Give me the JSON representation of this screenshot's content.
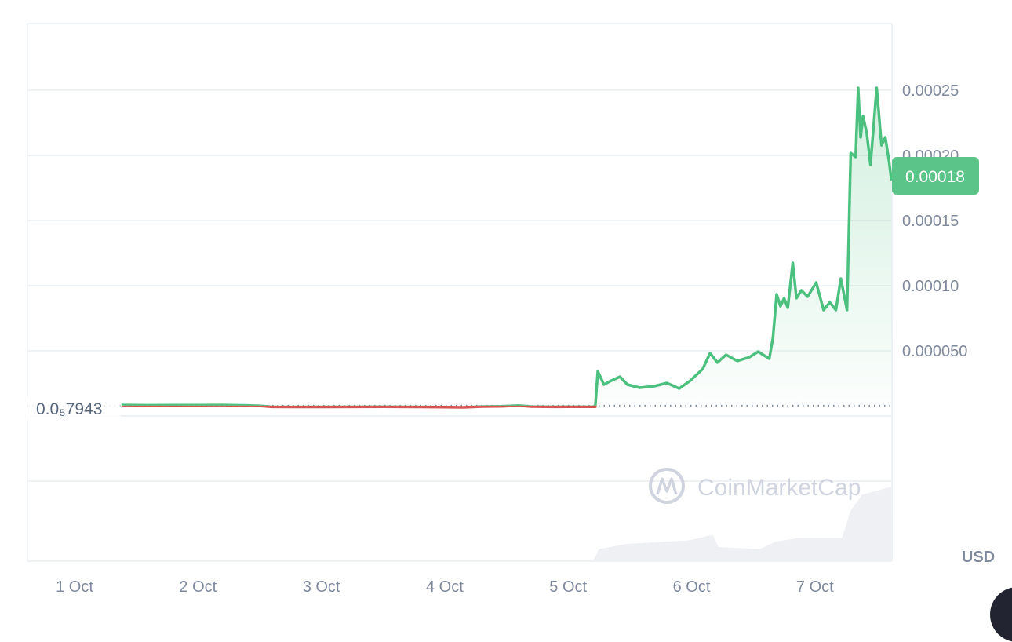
{
  "chart_data": {
    "type": "area",
    "currency_label": "USD",
    "watermark": "CoinMarketCap",
    "current_price_label": "0.00018",
    "reference_price_label": "0.0₅7943",
    "reference_price": 7.9e-06,
    "ylim": [
      0,
      0.0003
    ],
    "y_ticks": [
      "0.000050",
      "0.00010",
      "0.00015",
      "0.00020",
      "0.00025"
    ],
    "y_tick_values": [
      5e-05,
      0.0001,
      0.00015,
      0.0002,
      0.00025
    ],
    "x_ticks": [
      "1 Oct",
      "2 Oct",
      "3 Oct",
      "4 Oct",
      "5 Oct",
      "6 Oct",
      "7 Oct"
    ],
    "x_tick_days": [
      1,
      2,
      3,
      4,
      5,
      6,
      7
    ],
    "grid": true,
    "colors": {
      "up": "#4cc17f",
      "down": "#d9534f",
      "badge": "#5bc489",
      "volume": "#eff0f4",
      "text": "#808a9d"
    },
    "series": [
      {
        "x_days": [
          1.38,
          1.6,
          1.8,
          2.0,
          2.2,
          2.4,
          2.5,
          2.6,
          2.8,
          3.0,
          3.3,
          3.5,
          3.8,
          4.0,
          4.15,
          4.3,
          4.45,
          4.6,
          4.7,
          4.9,
          5.0,
          5.22,
          5.24,
          5.29,
          5.35,
          5.42,
          5.48,
          5.58,
          5.7,
          5.8,
          5.9,
          5.99,
          6.09,
          6.15,
          6.21,
          6.28,
          6.37,
          6.47,
          6.54,
          6.63,
          6.66,
          6.69,
          6.72,
          6.75,
          6.78,
          6.82,
          6.85,
          6.89,
          6.94,
          7.01,
          7.07,
          7.12,
          7.17,
          7.21,
          7.26,
          7.29,
          7.33,
          7.35,
          7.37,
          7.39,
          7.42,
          7.45,
          7.5,
          7.54,
          7.57,
          7.6,
          7.62
        ],
        "prices": [
          8.4e-06,
          8.2e-06,
          8.3e-06,
          8.3e-06,
          8.4e-06,
          8.1e-06,
          7.8e-06,
          7e-06,
          6.9e-06,
          6.9e-06,
          7e-06,
          7.1e-06,
          6.9e-06,
          6.8e-06,
          6.6e-06,
          7.2e-06,
          7.4e-06,
          8e-06,
          7.2e-06,
          7e-06,
          7.1e-06,
          7.1e-06,
          3.43e-05,
          2.41e-05,
          2.71e-05,
          3.01e-05,
          2.41e-05,
          2.17e-05,
          2.29e-05,
          2.53e-05,
          2.11e-05,
          2.71e-05,
          3.61e-05,
          4.82e-05,
          4.1e-05,
          4.7e-05,
          4.22e-05,
          4.52e-05,
          4.94e-05,
          4.4e-05,
          6.02e-05,
          9.34e-05,
          8.43e-05,
          9.04e-05,
          8.31e-05,
          0.0001175,
          9.04e-05,
          9.64e-05,
          9.16e-05,
          0.0001024,
          8.13e-05,
          8.73e-05,
          8.13e-05,
          0.0001054,
          8.13e-05,
          0.0002018,
          0.0001988,
          0.0002518,
          0.0002139,
          0.0002301,
          0.0002169,
          0.0001928,
          0.0002518,
          0.0002078,
          0.0002139,
          0.0001958,
          0.0001807
        ]
      }
    ],
    "volume": {
      "x_days": [
        5.2,
        5.25,
        5.47,
        5.98,
        6.17,
        6.22,
        6.55,
        6.68,
        6.87,
        7.22,
        7.29,
        7.38,
        7.62
      ],
      "relative": [
        0,
        0.16,
        0.23,
        0.28,
        0.35,
        0.19,
        0.16,
        0.26,
        0.31,
        0.31,
        0.68,
        0.89,
        1.0
      ]
    }
  }
}
